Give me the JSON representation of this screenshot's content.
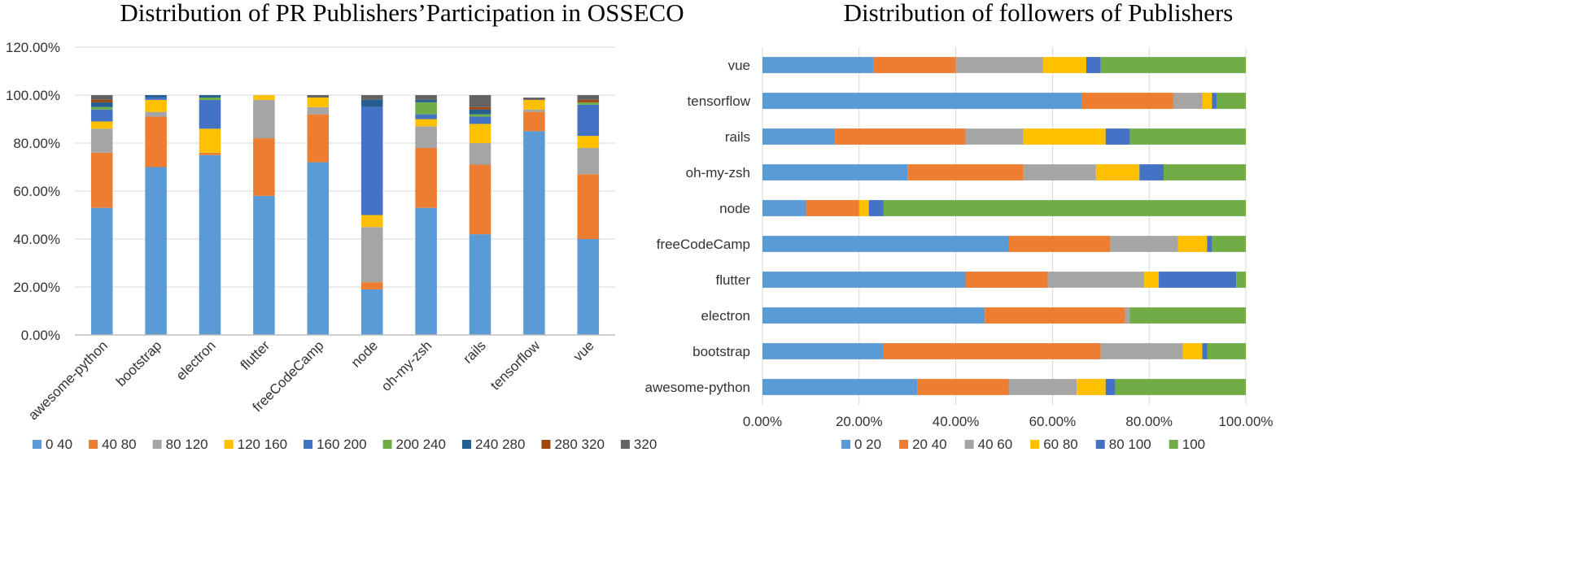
{
  "chart_data": [
    {
      "type": "bar",
      "orientation": "vertical",
      "stacked": true,
      "title": "Distribution of PR Publishers’Participation in OSSECO",
      "xlabel": "",
      "ylabel": "",
      "ylim": [
        0,
        1.2
      ],
      "yticks": [
        0,
        0.2,
        0.4,
        0.6,
        0.8,
        1.0,
        1.2
      ],
      "ytick_labels": [
        "0.00%",
        "20.00%",
        "40.00%",
        "60.00%",
        "80.00%",
        "100.00%",
        "120.00%"
      ],
      "grid": true,
      "legend_position": "bottom",
      "categories": [
        "awesome-python",
        "bootstrap",
        "electron",
        "flutter",
        "freeCodeCamp",
        "node",
        "oh-my-zsh",
        "rails",
        "tensorflow",
        "vue"
      ],
      "series": [
        {
          "name": "0 40",
          "color": "#5B9BD5",
          "values": [
            0.53,
            0.7,
            0.75,
            0.58,
            0.72,
            0.19,
            0.53,
            0.42,
            0.85,
            0.4
          ]
        },
        {
          "name": "40 80",
          "color": "#ED7D31",
          "values": [
            0.23,
            0.21,
            0.01,
            0.24,
            0.2,
            0.03,
            0.25,
            0.29,
            0.08,
            0.27
          ]
        },
        {
          "name": "80 120",
          "color": "#A5A5A5",
          "values": [
            0.1,
            0.02,
            0.0,
            0.16,
            0.03,
            0.23,
            0.09,
            0.09,
            0.01,
            0.11
          ]
        },
        {
          "name": "120 160",
          "color": "#FFC000",
          "values": [
            0.03,
            0.05,
            0.1,
            0.02,
            0.04,
            0.05,
            0.03,
            0.08,
            0.04,
            0.05
          ]
        },
        {
          "name": "160 200",
          "color": "#4472C4",
          "values": [
            0.05,
            0.01,
            0.12,
            0.0,
            0.0,
            0.45,
            0.02,
            0.03,
            0.0,
            0.13
          ]
        },
        {
          "name": "200 240",
          "color": "#70AD47",
          "values": [
            0.01,
            0.0,
            0.01,
            0.0,
            0.0,
            0.0,
            0.05,
            0.01,
            0.0,
            0.01
          ]
        },
        {
          "name": "240 280",
          "color": "#255E91",
          "values": [
            0.02,
            0.01,
            0.01,
            0.0,
            0.0,
            0.03,
            0.01,
            0.02,
            0.0,
            0.0
          ]
        },
        {
          "name": "280 320",
          "color": "#9E480E",
          "values": [
            0.01,
            0.0,
            0.0,
            0.0,
            0.0,
            0.0,
            0.0,
            0.01,
            0.0,
            0.01
          ]
        },
        {
          "name": "320",
          "color": "#636363",
          "values": [
            0.02,
            0.0,
            0.0,
            0.0,
            0.01,
            0.02,
            0.02,
            0.05,
            0.01,
            0.02
          ]
        }
      ]
    },
    {
      "type": "bar",
      "orientation": "horizontal",
      "stacked": true,
      "normalized": true,
      "title": "Distribution of followers of Publishers",
      "xlabel": "",
      "ylabel": "",
      "xlim": [
        0,
        1.0
      ],
      "xticks": [
        0,
        0.2,
        0.4,
        0.6,
        0.8,
        1.0
      ],
      "xtick_labels": [
        "0.00%",
        "20.00%",
        "40.00%",
        "60.00%",
        "80.00%",
        "100.00%"
      ],
      "grid": true,
      "legend_position": "bottom",
      "categories": [
        "vue",
        "tensorflow",
        "rails",
        "oh-my-zsh",
        "node",
        "freeCodeCamp",
        "flutter",
        "electron",
        "bootstrap",
        "awesome-python"
      ],
      "series": [
        {
          "name": "0 20",
          "color": "#5B9BD5",
          "values": [
            0.23,
            0.66,
            0.15,
            0.3,
            0.09,
            0.51,
            0.42,
            0.46,
            0.25,
            0.32
          ]
        },
        {
          "name": "20 40",
          "color": "#ED7D31",
          "values": [
            0.17,
            0.19,
            0.27,
            0.24,
            0.11,
            0.21,
            0.17,
            0.29,
            0.45,
            0.19
          ]
        },
        {
          "name": "40 60",
          "color": "#A5A5A5",
          "values": [
            0.18,
            0.06,
            0.12,
            0.15,
            0.0,
            0.14,
            0.2,
            0.01,
            0.17,
            0.14
          ]
        },
        {
          "name": "60 80",
          "color": "#FFC000",
          "values": [
            0.09,
            0.02,
            0.17,
            0.09,
            0.02,
            0.06,
            0.03,
            0.0,
            0.04,
            0.06
          ]
        },
        {
          "name": "80 100",
          "color": "#4472C4",
          "values": [
            0.03,
            0.01,
            0.05,
            0.05,
            0.03,
            0.01,
            0.16,
            0.0,
            0.01,
            0.02
          ]
        },
        {
          "name": "100",
          "color": "#70AD47",
          "values": [
            0.3,
            0.06,
            0.24,
            0.17,
            0.75,
            0.07,
            0.02,
            0.24,
            0.08,
            0.27
          ]
        }
      ]
    }
  ]
}
